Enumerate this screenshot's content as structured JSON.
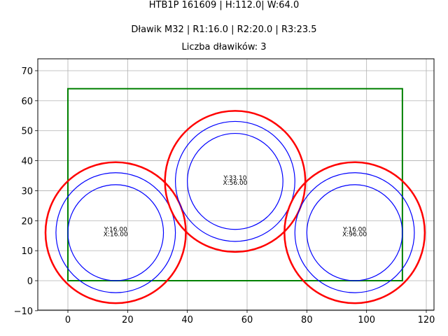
{
  "header": {
    "title_line1": "HTB1P 161609 | H:112.0| W:64.0",
    "title_line2": "Dławik M32 | R1:16.0 | R2:20.0 | R3:23.5",
    "title_line3": "Liczba dławików: 3"
  },
  "colors": {
    "rectangle": "#008000",
    "outer_circle": "#ff0000",
    "inner_circles": "#0000ff",
    "grid": "#b0b0b0"
  },
  "chart_data": {
    "type": "scatter",
    "title": "HTB1P 161609 | H:112.0| W:64.0",
    "subtitle": [
      "Dławik M32 | R1:16.0 | R2:20.0 | R3:23.5",
      "Liczba dławików: 3"
    ],
    "xlabel": "",
    "ylabel": "",
    "xlim": [
      -10,
      122
    ],
    "ylim": [
      -10,
      74
    ],
    "xticks": [
      0,
      20,
      40,
      60,
      80,
      100,
      120
    ],
    "yticks": [
      -10,
      0,
      10,
      20,
      30,
      40,
      50,
      60,
      70
    ],
    "xtick_labels": [
      "0",
      "20",
      "40",
      "60",
      "80",
      "100",
      "120"
    ],
    "ytick_labels": [
      "−10",
      "0",
      "10",
      "20",
      "30",
      "40",
      "50",
      "60",
      "70"
    ],
    "grid": true,
    "rectangle": {
      "x": 0,
      "y": 0,
      "width": 112,
      "height": 64,
      "color": "green"
    },
    "radii": {
      "R1": 16.0,
      "R2": 20.0,
      "R3": 23.5
    },
    "circles": [
      {
        "x": 16.0,
        "y": 16.0,
        "label_y": "Y:16.00",
        "label_x": "X:16.00"
      },
      {
        "x": 56.0,
        "y": 33.1,
        "label_y": "Y:33.10",
        "label_x": "X:56.00"
      },
      {
        "x": 96.0,
        "y": 16.0,
        "label_y": "Y:16.00",
        "label_x": "X:96.00"
      }
    ]
  }
}
